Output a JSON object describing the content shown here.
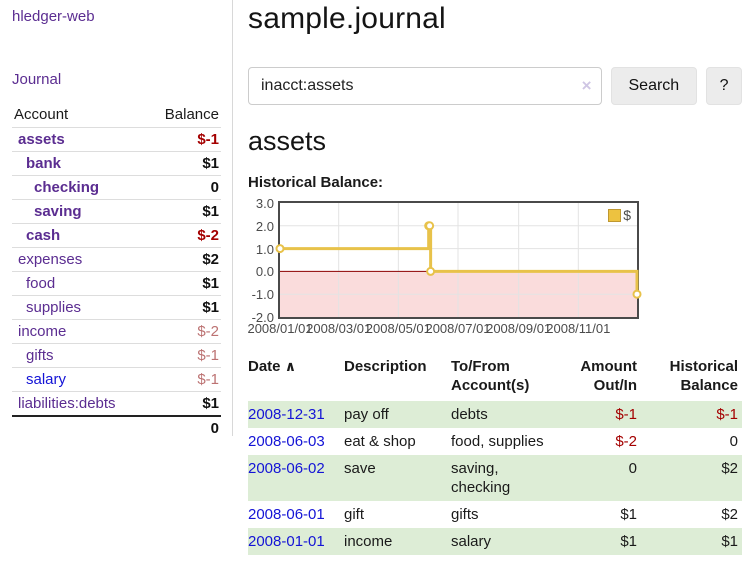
{
  "sidebar": {
    "app_title": "hledger-web",
    "nav": {
      "journal_label": "Journal"
    },
    "accounts_table": {
      "headers": {
        "account": "Account",
        "balance": "Balance"
      },
      "rows": [
        {
          "label": "assets",
          "indent": 1,
          "emph": true,
          "balance": "$-1",
          "balance_style": "neg-strong"
        },
        {
          "label": "bank",
          "indent": 2,
          "emph": true,
          "balance": "$1",
          "balance_style": "pos"
        },
        {
          "label": "checking",
          "indent": 3,
          "emph": true,
          "balance": "0",
          "balance_style": "pos"
        },
        {
          "label": "saving",
          "indent": 3,
          "emph": true,
          "balance": "$1",
          "balance_style": "pos"
        },
        {
          "label": "cash",
          "indent": 2,
          "emph": true,
          "balance": "$-2",
          "balance_style": "neg-strong"
        },
        {
          "label": "expenses",
          "indent": 1,
          "emph": false,
          "balance": "$2",
          "balance_style": "pos"
        },
        {
          "label": "food",
          "indent": 2,
          "emph": false,
          "balance": "$1",
          "balance_style": "pos"
        },
        {
          "label": "supplies",
          "indent": 2,
          "emph": false,
          "balance": "$1",
          "balance_style": "pos"
        },
        {
          "label": "income",
          "indent": 1,
          "emph": false,
          "balance": "$-2",
          "balance_style": "neg-muted"
        },
        {
          "label": "gifts",
          "indent": 2,
          "emph": false,
          "balance": "$-1",
          "balance_style": "neg-muted"
        },
        {
          "label": "salary",
          "indent": 2,
          "emph": false,
          "balance": "$-1",
          "balance_style": "neg-muted",
          "link_color": "blue"
        },
        {
          "label": "liabilities:debts",
          "indent": 1,
          "emph": false,
          "balance": "$1",
          "balance_style": "pos"
        }
      ],
      "total": "0"
    }
  },
  "main": {
    "title": "sample.journal",
    "search": {
      "value": "inacct:assets",
      "clear_icon": "×",
      "search_button": "Search",
      "help_button": "?"
    },
    "account_heading": "assets",
    "chart_heading": "Historical Balance:"
  },
  "chart_data": {
    "type": "line",
    "step": true,
    "title": "Historical Balance:",
    "series": [
      {
        "name": "$",
        "points": [
          [
            "2008-01-01",
            1
          ],
          [
            "2008-06-01",
            2
          ],
          [
            "2008-06-02",
            2
          ],
          [
            "2008-06-03",
            0
          ],
          [
            "2008-12-31",
            -1
          ]
        ]
      }
    ],
    "x_range": [
      "2008-01-01",
      "2008-12-31"
    ],
    "ylim": [
      -2,
      3
    ],
    "y_ticks": [
      {
        "value": 3,
        "label": "3.0"
      },
      {
        "value": 2,
        "label": "2.0"
      },
      {
        "value": 1,
        "label": "1.0"
      },
      {
        "value": 0,
        "label": "0.0"
      },
      {
        "value": -1,
        "label": "-1.0"
      },
      {
        "value": -2,
        "label": "-2.0"
      }
    ],
    "x_ticks": [
      {
        "date": "2008-01-01",
        "label": "2008/01/01"
      },
      {
        "date": "2008-03-01",
        "label": "2008/03/01"
      },
      {
        "date": "2008-05-01",
        "label": "2008/05/01"
      },
      {
        "date": "2008-07-01",
        "label": "2008/07/01"
      },
      {
        "date": "2008-09-01",
        "label": "2008/09/01"
      },
      {
        "date": "2008-11-01",
        "label": "2008/11/01"
      }
    ],
    "grid": true,
    "legend_position": "top-right",
    "line_color": "#e8c24a",
    "marker_fill": "#ffffff",
    "negative_fill": "#fadcdc",
    "zero_line_color": "#8b0000",
    "gridline_color": "#e3e3e3",
    "border_color": "#4a4a4a"
  },
  "register_table": {
    "headers": {
      "date": "Date",
      "sort_icon": "∧",
      "description": "Description",
      "accounts": "To/From Account(s)",
      "amount": "Amount Out/In",
      "balance": "Historical Balance"
    },
    "rows": [
      {
        "date": "2008-12-31",
        "description": "pay off",
        "accounts": "debts",
        "amount": "$-1",
        "amount_negative": true,
        "balance": "$-1",
        "balance_negative": true
      },
      {
        "date": "2008-06-03",
        "description": "eat & shop",
        "accounts": "food, supplies",
        "amount": "$-2",
        "amount_negative": true,
        "balance": "0",
        "balance_negative": false
      },
      {
        "date": "2008-06-02",
        "description": "save",
        "accounts": "saving, checking",
        "amount": "0",
        "amount_negative": false,
        "balance": "$2",
        "balance_negative": false
      },
      {
        "date": "2008-06-01",
        "description": "gift",
        "accounts": "gifts",
        "amount": "$1",
        "amount_negative": false,
        "balance": "$2",
        "balance_negative": false
      },
      {
        "date": "2008-01-01",
        "description": "income",
        "accounts": "salary",
        "amount": "$1",
        "amount_negative": false,
        "balance": "$1",
        "balance_negative": false
      }
    ]
  },
  "colors": {
    "link_purple": "#5b2d91",
    "link_blue": "#1414d6",
    "negative_strong": "#a40000",
    "negative_muted": "#bc7272",
    "row_green": "#ddedd6",
    "chart_gold": "#e8c24a",
    "chart_pink": "#fadcdc",
    "zero_line_red": "#8b0000"
  }
}
